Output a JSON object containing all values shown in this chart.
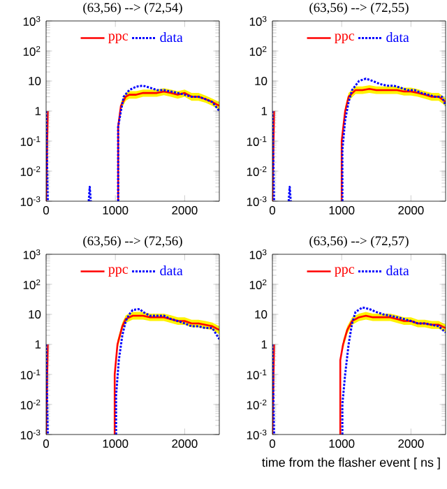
{
  "chart_data": [
    {
      "type": "line",
      "title": "(63,56) --> (72,54)",
      "log": "y",
      "xlim": [
        0,
        2500
      ],
      "ylim": [
        0.001,
        1000
      ],
      "xticks": [
        0,
        1000,
        2000
      ],
      "yticks": [
        {
          "value": 0.001,
          "label": "10$^{-3}$"
        },
        {
          "value": 0.01,
          "label": "10$^{-2}$"
        },
        {
          "value": 0.1,
          "label": "10$^{-1}$"
        },
        1,
        10,
        {
          "value": 100,
          "label": "10$^{2}$"
        },
        {
          "value": 1000,
          "label": "10$^{3}$"
        }
      ],
      "legend": "top",
      "marker": "none",
      "series": [
        {
          "name": "ppc",
          "color": "#ff0000",
          "line_style": "solid",
          "x": [
            0,
            25,
            null,
            1040,
            1040,
            1080,
            1150,
            1200,
            1300,
            1400,
            1500,
            1600,
            1700,
            1800,
            1900,
            2000,
            2100,
            2200,
            2300,
            2400,
            2500
          ],
          "values": [
            0.001,
            1,
            null,
            0.001,
            0.3,
            1.5,
            3,
            3.5,
            3.5,
            4,
            4,
            4,
            4.5,
            4,
            3.5,
            4,
            3,
            3,
            2.5,
            2,
            1.5
          ],
          "lower": [
            null,
            null,
            null,
            null,
            null,
            1.1,
            2.2,
            2.6,
            2.6,
            3,
            3,
            3,
            3.4,
            3,
            2.6,
            3,
            2.2,
            2.2,
            1.9,
            1.5,
            1.1
          ],
          "upper": [
            null,
            null,
            null,
            null,
            null,
            2,
            4,
            4.6,
            4.6,
            5.2,
            5.2,
            5.2,
            5.8,
            5.2,
            4.6,
            5.2,
            4,
            4,
            3.3,
            2.6,
            2
          ]
        },
        {
          "name": "data",
          "color": "#0000ff",
          "line_style": "dotted",
          "x": [
            0,
            25,
            null,
            615,
            630,
            645,
            null,
            1040,
            1040,
            1080,
            1120,
            1200,
            1300,
            1400,
            1500,
            1600,
            1700,
            1800,
            1900,
            2000,
            2100,
            2200,
            2300,
            2400,
            2500
          ],
          "values": [
            1,
            0.001,
            null,
            0.001,
            0.003,
            0.001,
            null,
            0.001,
            0.3,
            1,
            3,
            5,
            6.5,
            7,
            6,
            5,
            5,
            4.5,
            4,
            3.5,
            3,
            3,
            2.5,
            2,
            1
          ]
        }
      ]
    },
    {
      "type": "line",
      "title": "(63,56) --> (72,55)",
      "log": "y",
      "xlim": [
        0,
        2500
      ],
      "ylim": [
        0.001,
        1000
      ],
      "xticks": [
        0,
        1000,
        2000
      ],
      "yticks": [
        {
          "value": 0.001,
          "label": "10$^{-3}$"
        },
        {
          "value": 0.01,
          "label": "10$^{-2}$"
        },
        {
          "value": 0.1,
          "label": "10$^{-1}$"
        },
        1,
        10,
        {
          "value": 100,
          "label": "10$^{2}$"
        },
        {
          "value": 1000,
          "label": "10$^{3}$"
        }
      ],
      "legend": "top",
      "marker": "none",
      "series": [
        {
          "name": "ppc",
          "color": "#ff0000",
          "line_style": "solid",
          "x": [
            0,
            25,
            null,
            1000,
            1000,
            1050,
            1100,
            1200,
            1300,
            1400,
            1500,
            1600,
            1700,
            1800,
            1900,
            2000,
            2100,
            2200,
            2300,
            2400,
            2500
          ],
          "values": [
            0.001,
            1,
            null,
            0.001,
            0.1,
            1,
            3,
            5,
            5,
            5.5,
            5,
            5,
            5,
            5,
            4.5,
            4.5,
            4,
            3.5,
            3,
            3,
            2
          ],
          "lower": [
            null,
            null,
            null,
            null,
            null,
            0.7,
            2.2,
            3.7,
            3.7,
            4,
            3.7,
            3.7,
            3.7,
            3.7,
            3.3,
            3.3,
            3,
            2.6,
            2.2,
            2.2,
            1.5
          ],
          "upper": [
            null,
            null,
            null,
            null,
            null,
            1.4,
            4,
            6.6,
            6.6,
            7.3,
            6.6,
            6.6,
            6.6,
            6.6,
            6,
            6,
            5.3,
            4.6,
            4,
            4,
            2.7
          ]
        },
        {
          "name": "data",
          "color": "#0000ff",
          "line_style": "dotted",
          "x": [
            0,
            25,
            null,
            235,
            250,
            265,
            null,
            1010,
            1010,
            1050,
            1100,
            1150,
            1250,
            1350,
            1450,
            1550,
            1650,
            1750,
            1850,
            1950,
            2050,
            2150,
            2250,
            2350,
            2450,
            2500
          ],
          "values": [
            1,
            0.001,
            null,
            0.001,
            0.003,
            0.001,
            null,
            0.001,
            0.05,
            0.5,
            2,
            5,
            10,
            12,
            10,
            8,
            7,
            7,
            6,
            5,
            5,
            4,
            3.5,
            3,
            3,
            1.5
          ]
        }
      ]
    },
    {
      "type": "line",
      "title": "(63,56) --> (72,56)",
      "log": "y",
      "xlim": [
        0,
        2500
      ],
      "ylim": [
        0.001,
        1000
      ],
      "xticks": [
        0,
        1000,
        2000
      ],
      "yticks": [
        {
          "value": 0.001,
          "label": "10$^{-3}$"
        },
        {
          "value": 0.01,
          "label": "10$^{-2}$"
        },
        {
          "value": 0.1,
          "label": "10$^{-1}$"
        },
        1,
        10,
        {
          "value": 100,
          "label": "10$^{2}$"
        },
        {
          "value": 1000,
          "label": "10$^{3}$"
        }
      ],
      "legend": "top",
      "marker": "none",
      "series": [
        {
          "name": "ppc",
          "color": "#ff0000",
          "line_style": "solid",
          "x": [
            0,
            25,
            null,
            990,
            990,
            1030,
            1100,
            1150,
            1250,
            1400,
            1500,
            1600,
            1700,
            1800,
            1900,
            2000,
            2100,
            2200,
            2300,
            2400,
            2500
          ],
          "values": [
            0.001,
            1,
            null,
            0.001,
            0.1,
            1,
            4,
            7,
            9,
            9,
            8,
            8,
            8,
            7,
            6,
            6,
            5,
            5,
            4.5,
            4,
            3
          ],
          "lower": [
            null,
            null,
            null,
            null,
            null,
            0.7,
            3,
            5.2,
            6.7,
            6.7,
            6,
            6,
            6,
            5.2,
            4.5,
            4.5,
            3.7,
            3.7,
            3.3,
            3,
            2.2
          ],
          "upper": [
            null,
            null,
            null,
            null,
            null,
            1.4,
            5.3,
            9.3,
            12,
            12,
            10.6,
            10.6,
            10.6,
            9.3,
            8,
            8,
            6.6,
            6.6,
            6,
            5.3,
            4
          ]
        },
        {
          "name": "data",
          "color": "#0000ff",
          "line_style": "dotted",
          "x": [
            0,
            25,
            null,
            1010,
            1010,
            1050,
            1100,
            1150,
            1200,
            1250,
            1350,
            1400,
            1500,
            1600,
            1700,
            1800,
            1900,
            2000,
            2100,
            2200,
            2300,
            2400,
            2500
          ],
          "values": [
            1,
            0.001,
            null,
            0.001,
            0.02,
            0.3,
            2,
            6,
            10,
            14,
            15,
            12,
            9,
            9,
            9,
            7,
            6,
            5,
            4,
            4,
            3.5,
            3.5,
            1.5
          ]
        }
      ]
    },
    {
      "type": "line",
      "title": "(63,56) --> (72,57)",
      "xlabel": "time from the flasher event [ ns ]",
      "log": "y",
      "xlim": [
        0,
        2500
      ],
      "ylim": [
        0.001,
        1000
      ],
      "xticks": [
        0,
        1000,
        2000
      ],
      "yticks": [
        {
          "value": 0.001,
          "label": "10$^{-3}$"
        },
        {
          "value": 0.01,
          "label": "10$^{-2}$"
        },
        {
          "value": 0.1,
          "label": "10$^{-1}$"
        },
        1,
        10,
        {
          "value": 100,
          "label": "10$^{2}$"
        },
        {
          "value": 1000,
          "label": "10$^{3}$"
        }
      ],
      "legend": "top",
      "marker": "none",
      "series": [
        {
          "name": "ppc",
          "color": "#ff0000",
          "line_style": "solid",
          "x": [
            0,
            25,
            null,
            980,
            980,
            1020,
            1080,
            1150,
            1250,
            1350,
            1450,
            1600,
            1700,
            1800,
            1900,
            2000,
            2100,
            2200,
            2300,
            2400,
            2500
          ],
          "values": [
            0.001,
            1,
            null,
            0.001,
            0.3,
            1,
            3,
            6,
            8,
            9,
            8,
            8,
            8,
            7,
            6,
            6,
            5,
            5,
            4.5,
            4.5,
            3.5
          ],
          "lower": [
            null,
            null,
            null,
            null,
            null,
            0.7,
            2.2,
            4.5,
            6,
            6.7,
            6,
            6,
            6,
            5.2,
            4.5,
            4.5,
            3.7,
            3.7,
            3.3,
            3.3,
            2.6
          ],
          "upper": [
            null,
            null,
            null,
            null,
            null,
            1.4,
            4,
            8,
            10.6,
            12,
            10.6,
            10.6,
            10.6,
            9.3,
            8,
            8,
            6.6,
            6.6,
            6,
            6,
            4.6
          ]
        },
        {
          "name": "data",
          "color": "#0000ff",
          "line_style": "dotted",
          "x": [
            0,
            25,
            null,
            1010,
            1010,
            1050,
            1100,
            1150,
            1200,
            1300,
            1400,
            1500,
            1600,
            1700,
            1800,
            1900,
            2000,
            2100,
            2200,
            2300,
            2400,
            2500
          ],
          "values": [
            1,
            0.001,
            null,
            0.001,
            0.01,
            0.1,
            1,
            5,
            12,
            17,
            15,
            12,
            10,
            9,
            8,
            7,
            6,
            5,
            5,
            4.5,
            4,
            2.5
          ]
        }
      ]
    }
  ]
}
